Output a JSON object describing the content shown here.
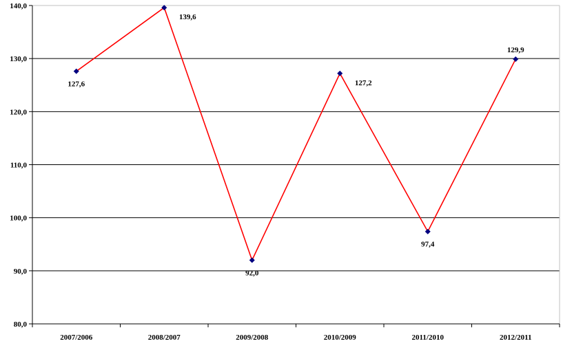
{
  "chart_data": {
    "type": "line",
    "title": "",
    "xlabel": "",
    "ylabel": "",
    "categories": [
      "2007/2006",
      "2008/2007",
      "2009/2008",
      "2010/2009",
      "2011/2010",
      "2012/2011"
    ],
    "series": [
      {
        "values": [
          127.6,
          139.6,
          92.0,
          127.2,
          97.4,
          129.9
        ],
        "data_labels": [
          "127,6",
          "139,6",
          "92,0",
          "127,2",
          "97,4",
          "129,9"
        ],
        "label_positions": [
          "below",
          "right",
          "below",
          "right",
          "below",
          "above"
        ],
        "line_color": "#ff0000",
        "marker_color": "#000080"
      }
    ],
    "ylim": [
      80,
      140
    ],
    "y_ticks": [
      80,
      90,
      100,
      110,
      120,
      130,
      140
    ],
    "y_tick_labels": [
      "80,0",
      "90,0",
      "100,0",
      "110,0",
      "120,0",
      "130,0",
      "140,0"
    ],
    "grid": true,
    "gridline_color": "#000000",
    "legend": "none"
  }
}
